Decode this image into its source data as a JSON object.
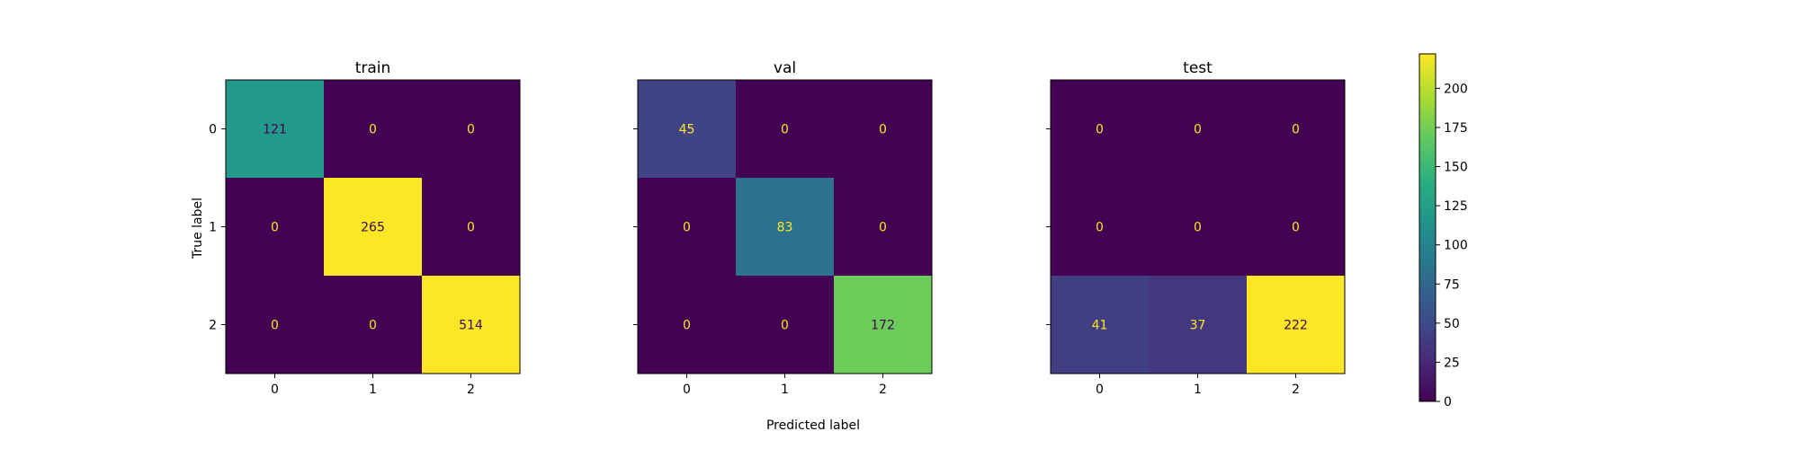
{
  "chart_data": {
    "type": "heatmap",
    "supxlabel": "Predicted label",
    "ylabel": "True label",
    "row_tick_labels": [
      "0",
      "1",
      "2"
    ],
    "col_tick_labels": [
      "0",
      "1",
      "2"
    ],
    "colormap": "viridis",
    "color_range": [
      0,
      222
    ],
    "panels": [
      {
        "title": "train",
        "matrix": [
          [
            121,
            0,
            0
          ],
          [
            0,
            265,
            0
          ],
          [
            0,
            0,
            514
          ]
        ]
      },
      {
        "title": "val",
        "matrix": [
          [
            45,
            0,
            0
          ],
          [
            0,
            83,
            0
          ],
          [
            0,
            0,
            172
          ]
        ]
      },
      {
        "title": "test",
        "matrix": [
          [
            0,
            0,
            0
          ],
          [
            0,
            0,
            0
          ],
          [
            41,
            37,
            222
          ]
        ]
      }
    ],
    "colorbar": {
      "ticks": [
        "0",
        "25",
        "50",
        "75",
        "100",
        "125",
        "150",
        "175",
        "200"
      ],
      "tick_values": [
        0,
        25,
        50,
        75,
        100,
        125,
        150,
        175,
        200
      ]
    },
    "text_colors": {
      "light": "#fde725",
      "dark": "#440154"
    }
  }
}
